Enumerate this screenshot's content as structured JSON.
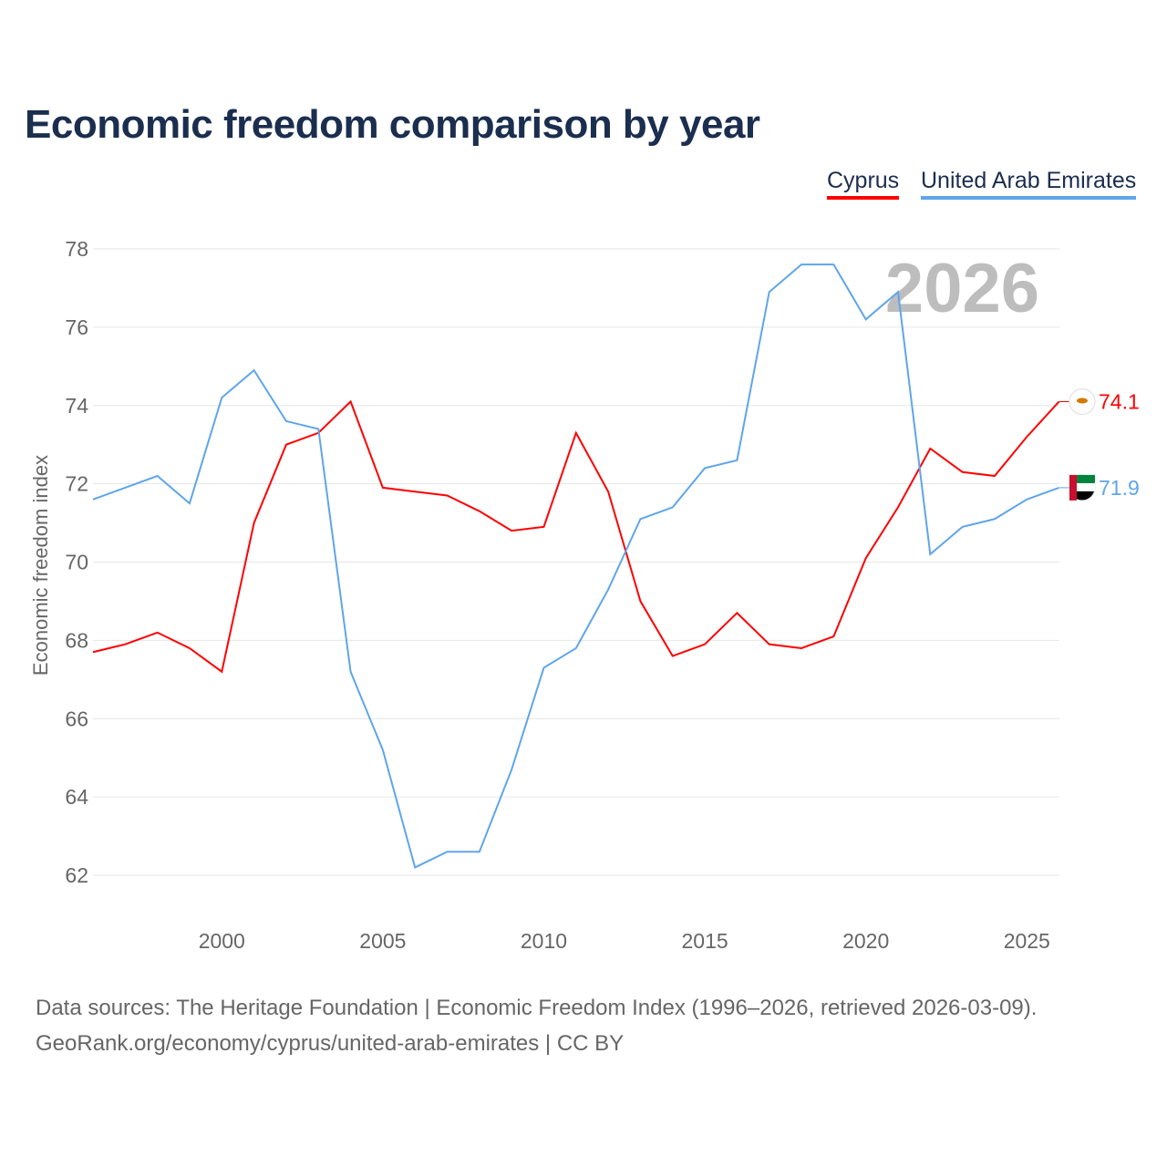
{
  "chart_data": {
    "type": "line",
    "title": "Economic freedom comparison by year",
    "ylabel": "Economic freedom index",
    "xlabel": "",
    "ylim": [
      62,
      78
    ],
    "xlim": [
      1996,
      2026
    ],
    "yticks": [
      62,
      64,
      66,
      68,
      70,
      72,
      74,
      76,
      78
    ],
    "xticks": [
      2000,
      2005,
      2010,
      2015,
      2020,
      2025
    ],
    "grid": true,
    "legend_position": "top-right",
    "year_label": "2026",
    "x": [
      1996,
      1997,
      1998,
      1999,
      2000,
      2001,
      2002,
      2003,
      2004,
      2005,
      2006,
      2007,
      2008,
      2009,
      2010,
      2011,
      2012,
      2013,
      2014,
      2015,
      2016,
      2017,
      2018,
      2019,
      2020,
      2021,
      2022,
      2023,
      2024,
      2025,
      2026
    ],
    "series": [
      {
        "name": "Cyprus",
        "color": "#ff0000",
        "end_label": "74.1",
        "values": [
          67.7,
          67.9,
          68.2,
          67.8,
          67.2,
          71.0,
          73.0,
          73.3,
          74.1,
          71.9,
          71.8,
          71.7,
          71.3,
          70.8,
          70.9,
          73.3,
          71.8,
          69.0,
          67.6,
          67.9,
          68.7,
          67.9,
          67.8,
          68.1,
          70.1,
          71.4,
          72.9,
          72.3,
          72.2,
          73.2,
          74.1
        ]
      },
      {
        "name": "United Arab Emirates",
        "color": "#5fa5ea",
        "end_label": "71.9",
        "values": [
          71.6,
          71.9,
          72.2,
          71.5,
          74.2,
          74.9,
          73.6,
          73.4,
          67.2,
          65.2,
          62.2,
          62.6,
          62.6,
          64.7,
          67.3,
          67.8,
          69.3,
          71.1,
          71.4,
          72.4,
          72.6,
          76.9,
          77.6,
          77.6,
          76.2,
          76.9,
          70.2,
          70.9,
          71.1,
          71.6,
          71.9
        ]
      }
    ]
  },
  "source_line1": "Data sources: The Heritage Foundation | Economic Freedom Index (1996–2026, retrieved 2026-03-09).",
  "source_line2": "GeoRank.org/economy/cyprus/united-arab-emirates | CC BY"
}
